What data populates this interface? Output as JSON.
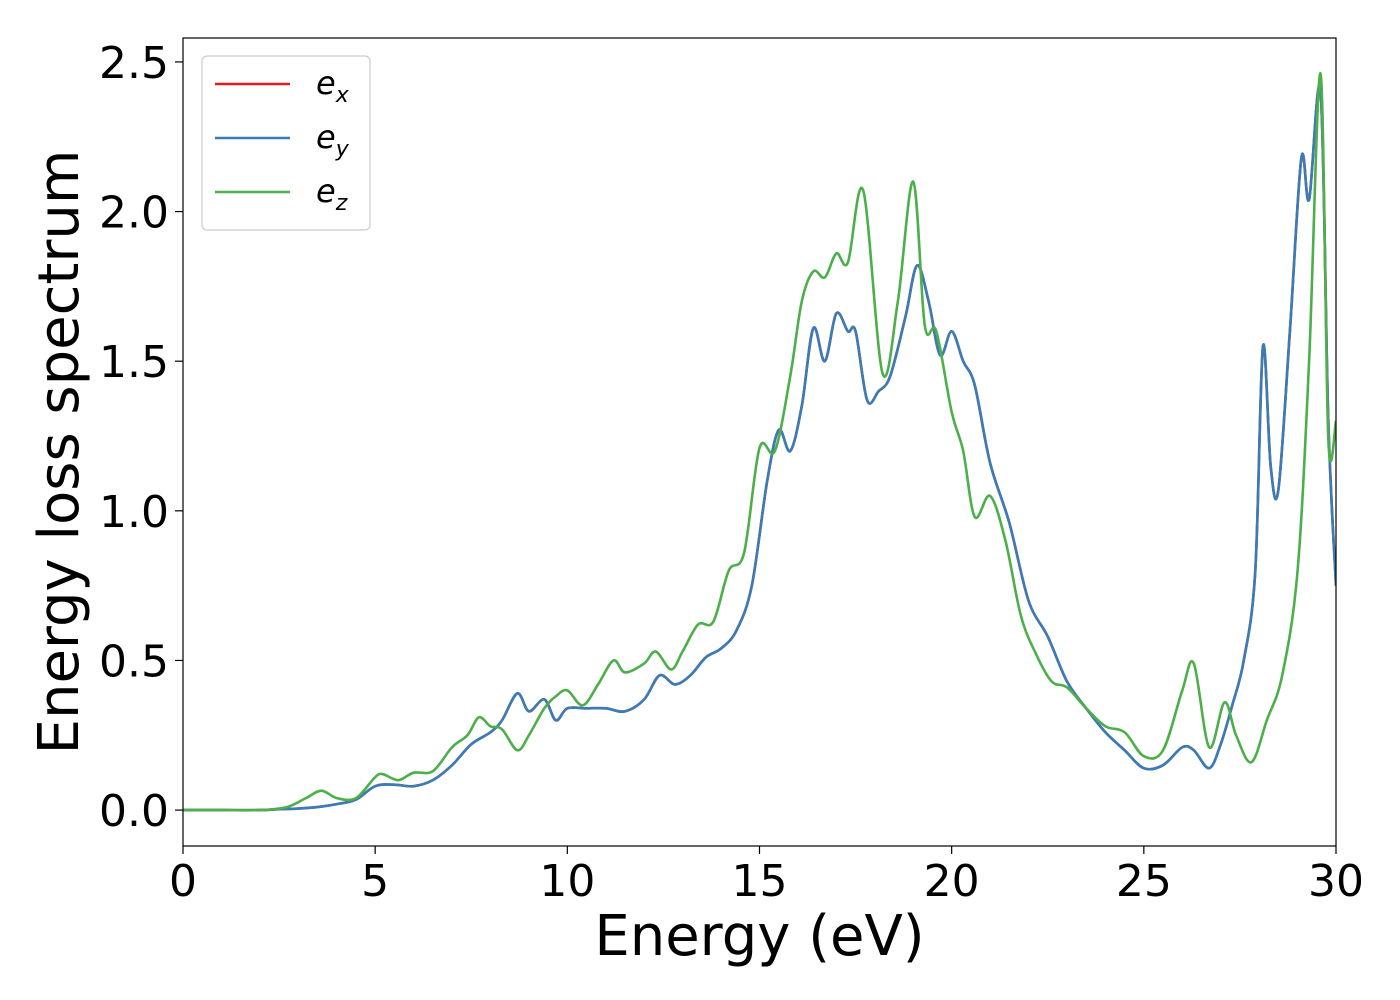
{
  "chart_data": {
    "type": "line",
    "xlabel": "Energy (eV)",
    "ylabel": "Energy loss spectrum",
    "xlim": [
      0,
      30
    ],
    "ylim": [
      -0.12,
      2.58
    ],
    "xticks": [
      0,
      5,
      10,
      15,
      20,
      25,
      30
    ],
    "xtick_labels": [
      "0",
      "5",
      "10",
      "15",
      "20",
      "25",
      "30"
    ],
    "yticks": [
      0.0,
      0.5,
      1.0,
      1.5,
      2.0,
      2.5
    ],
    "ytick_labels": [
      "0.0",
      "0.5",
      "1.0",
      "1.5",
      "2.0",
      "2.5"
    ],
    "grid": false,
    "legend_position": "upper-left",
    "colors": {
      "ex": "#e41a1c",
      "ey": "#377eb8",
      "ez": "#4daf4a"
    },
    "series": [
      {
        "name": "ex",
        "legend_base": "e",
        "legend_sub": "x",
        "x": [
          0,
          1,
          2,
          2.5,
          3,
          3.5,
          4,
          4.5,
          5,
          5.5,
          6,
          6.5,
          7,
          7.5,
          8,
          8.3,
          8.7,
          9,
          9.4,
          9.7,
          10,
          10.5,
          11,
          11.5,
          12,
          12.4,
          12.8,
          13.2,
          13.6,
          14,
          14.4,
          14.8,
          15.2,
          15.5,
          15.8,
          16.1,
          16.4,
          16.7,
          17,
          17.3,
          17.5,
          17.8,
          18.1,
          18.4,
          18.8,
          19.1,
          19.4,
          19.7,
          20,
          20.3,
          20.6,
          21,
          21.5,
          22,
          22.5,
          23,
          23.5,
          24,
          24.5,
          25,
          25.5,
          26,
          26.3,
          26.7,
          27,
          27.3,
          27.6,
          27.9,
          28.1,
          28.3,
          28.5,
          28.8,
          29.1,
          29.3,
          29.6,
          29.8,
          30
        ],
        "values": [
          0,
          0,
          0,
          0.003,
          0.005,
          0.01,
          0.02,
          0.035,
          0.08,
          0.085,
          0.08,
          0.1,
          0.15,
          0.22,
          0.26,
          0.3,
          0.39,
          0.33,
          0.37,
          0.3,
          0.34,
          0.34,
          0.34,
          0.33,
          0.37,
          0.45,
          0.42,
          0.45,
          0.51,
          0.54,
          0.6,
          0.75,
          1.1,
          1.27,
          1.2,
          1.35,
          1.61,
          1.5,
          1.66,
          1.6,
          1.6,
          1.37,
          1.4,
          1.45,
          1.65,
          1.82,
          1.7,
          1.52,
          1.6,
          1.5,
          1.42,
          1.16,
          0.96,
          0.7,
          0.58,
          0.43,
          0.34,
          0.26,
          0.2,
          0.14,
          0.15,
          0.21,
          0.2,
          0.14,
          0.22,
          0.35,
          0.5,
          0.8,
          1.55,
          1.15,
          1.07,
          1.6,
          2.18,
          2.04,
          2.4,
          1.3,
          0.75
        ]
      },
      {
        "name": "ey",
        "legend_base": "e",
        "legend_sub": "y",
        "x": [
          0,
          1,
          2,
          2.5,
          3,
          3.5,
          4,
          4.5,
          5,
          5.5,
          6,
          6.5,
          7,
          7.5,
          8,
          8.3,
          8.7,
          9,
          9.4,
          9.7,
          10,
          10.5,
          11,
          11.5,
          12,
          12.4,
          12.8,
          13.2,
          13.6,
          14,
          14.4,
          14.8,
          15.2,
          15.5,
          15.8,
          16.1,
          16.4,
          16.7,
          17,
          17.3,
          17.5,
          17.8,
          18.1,
          18.4,
          18.8,
          19.1,
          19.4,
          19.7,
          20,
          20.3,
          20.6,
          21,
          21.5,
          22,
          22.5,
          23,
          23.5,
          24,
          24.5,
          25,
          25.5,
          26,
          26.3,
          26.7,
          27,
          27.3,
          27.6,
          27.9,
          28.1,
          28.3,
          28.5,
          28.8,
          29.1,
          29.3,
          29.6,
          29.8,
          30
        ],
        "values": [
          0,
          0,
          0,
          0.003,
          0.005,
          0.01,
          0.02,
          0.035,
          0.08,
          0.085,
          0.08,
          0.1,
          0.15,
          0.22,
          0.26,
          0.3,
          0.39,
          0.33,
          0.37,
          0.3,
          0.34,
          0.34,
          0.34,
          0.33,
          0.37,
          0.45,
          0.42,
          0.45,
          0.51,
          0.54,
          0.6,
          0.75,
          1.1,
          1.27,
          1.2,
          1.35,
          1.61,
          1.5,
          1.66,
          1.6,
          1.6,
          1.37,
          1.4,
          1.45,
          1.65,
          1.82,
          1.7,
          1.52,
          1.6,
          1.5,
          1.42,
          1.16,
          0.96,
          0.7,
          0.58,
          0.43,
          0.34,
          0.26,
          0.2,
          0.14,
          0.15,
          0.21,
          0.2,
          0.14,
          0.22,
          0.35,
          0.5,
          0.8,
          1.55,
          1.15,
          1.07,
          1.6,
          2.18,
          2.04,
          2.4,
          1.3,
          0.75
        ]
      },
      {
        "name": "ez",
        "legend_base": "e",
        "legend_sub": "z",
        "x": [
          0,
          1,
          2,
          2.7,
          3.2,
          3.6,
          4,
          4.5,
          5,
          5.2,
          5.6,
          6,
          6.5,
          7,
          7.4,
          7.7,
          8,
          8.3,
          8.7,
          9,
          9.4,
          9.7,
          10,
          10.4,
          10.8,
          11.2,
          11.5,
          12,
          12.3,
          12.7,
          13,
          13.4,
          13.8,
          14.2,
          14.6,
          15,
          15.4,
          15.8,
          16.1,
          16.4,
          16.7,
          17,
          17.3,
          17.7,
          18.2,
          18.6,
          19,
          19.3,
          19.6,
          20,
          20.3,
          20.6,
          21,
          21.4,
          21.8,
          22.2,
          22.6,
          23,
          23.5,
          24,
          24.5,
          25,
          25.5,
          26,
          26.3,
          26.7,
          27.1,
          27.4,
          27.8,
          28.2,
          28.6,
          29,
          29.3,
          29.6,
          29.8,
          30
        ],
        "values": [
          0,
          0,
          0,
          0.01,
          0.04,
          0.065,
          0.04,
          0.04,
          0.11,
          0.12,
          0.1,
          0.125,
          0.13,
          0.21,
          0.25,
          0.31,
          0.28,
          0.27,
          0.2,
          0.25,
          0.34,
          0.38,
          0.4,
          0.35,
          0.42,
          0.5,
          0.46,
          0.49,
          0.53,
          0.47,
          0.53,
          0.62,
          0.63,
          0.8,
          0.86,
          1.21,
          1.2,
          1.45,
          1.7,
          1.8,
          1.78,
          1.86,
          1.83,
          2.07,
          1.46,
          1.7,
          2.1,
          1.62,
          1.6,
          1.33,
          1.2,
          0.98,
          1.05,
          0.9,
          0.65,
          0.52,
          0.43,
          0.41,
          0.34,
          0.28,
          0.26,
          0.18,
          0.2,
          0.4,
          0.49,
          0.21,
          0.36,
          0.25,
          0.16,
          0.3,
          0.45,
          0.8,
          1.5,
          2.46,
          1.24,
          1.3
        ]
      }
    ]
  }
}
